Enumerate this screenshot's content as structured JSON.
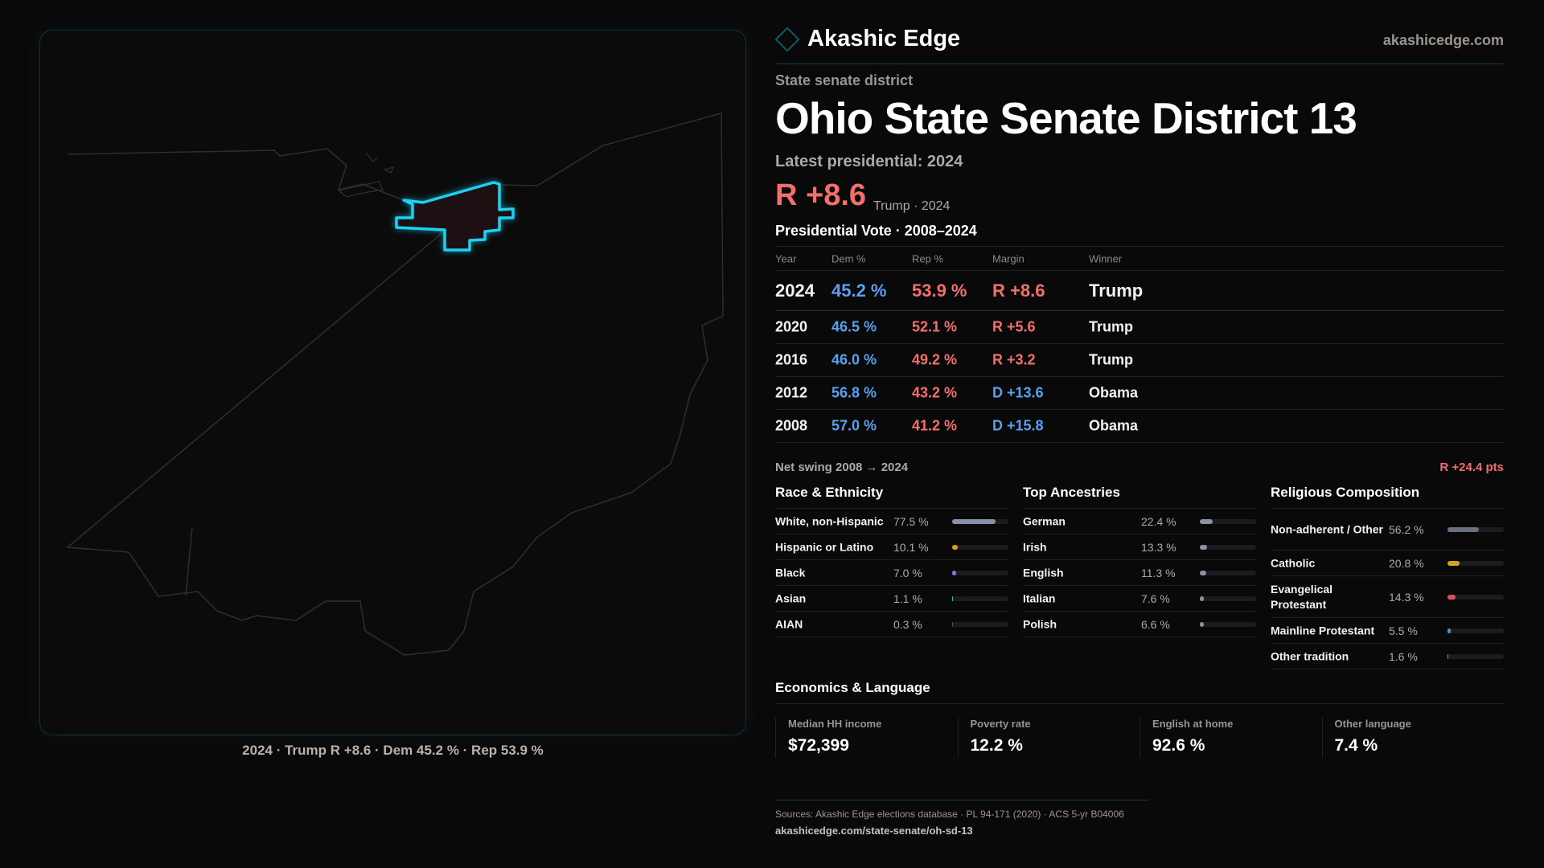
{
  "brand": {
    "name": "Akashic Edge",
    "site": "akashicedge.com"
  },
  "header": {
    "kicker": "State senate district",
    "title": "Ohio State Senate District 13",
    "latest": "Latest presidential: 2024",
    "margin": "R +8.6",
    "margin_sub": "Trump · 2024"
  },
  "map": {
    "caption": "2024 · Trump R +8.6 · Dem 45.2 % · Rep 53.9 %",
    "highlight_color": "#19d3f0"
  },
  "votes": {
    "title": "Presidential Vote · 2008–2024",
    "headers": [
      "Year",
      "Dem %",
      "Rep %",
      "Margin",
      "Winner"
    ],
    "rows": [
      {
        "year": "2024",
        "dem": "45.2 %",
        "rep": "53.9 %",
        "margin": "R +8.6",
        "winner": "Trump",
        "party": "rep"
      },
      {
        "year": "2020",
        "dem": "46.5 %",
        "rep": "52.1 %",
        "margin": "R +5.6",
        "winner": "Trump",
        "party": "rep"
      },
      {
        "year": "2016",
        "dem": "46.0 %",
        "rep": "49.2 %",
        "margin": "R +3.2",
        "winner": "Trump",
        "party": "rep"
      },
      {
        "year": "2012",
        "dem": "56.8 %",
        "rep": "43.2 %",
        "margin": "D +13.6",
        "winner": "Obama",
        "party": "dem"
      },
      {
        "year": "2008",
        "dem": "57.0 %",
        "rep": "41.2 %",
        "margin": "D +15.8",
        "winner": "Obama",
        "party": "dem"
      }
    ],
    "swing_label": "Net swing 2008 → 2024",
    "swing_value": "R +24.4 pts"
  },
  "demographics": [
    {
      "title": "Race & Ethnicity",
      "items": [
        {
          "label": "White, non-Hispanic",
          "pct": "77.5 %",
          "value": 77.5,
          "color": "#8593a8"
        },
        {
          "label": "Hispanic or Latino",
          "pct": "10.1 %",
          "value": 10.1,
          "color": "#e09a1a"
        },
        {
          "label": "Black",
          "pct": "7.0 %",
          "value": 7.0,
          "color": "#8a72d8"
        },
        {
          "label": "Asian",
          "pct": "1.1 %",
          "value": 1.1,
          "color": "#2fc48a"
        },
        {
          "label": "AIAN",
          "pct": "0.3 %",
          "value": 0.3,
          "color": "#555"
        }
      ]
    },
    {
      "title": "Top Ancestries",
      "items": [
        {
          "label": "German",
          "pct": "22.4 %",
          "value": 22.4,
          "color": "#8a94a4"
        },
        {
          "label": "Irish",
          "pct": "13.3 %",
          "value": 13.3,
          "color": "#8a94a4"
        },
        {
          "label": "English",
          "pct": "11.3 %",
          "value": 11.3,
          "color": "#8a94a4"
        },
        {
          "label": "Italian",
          "pct": "7.6 %",
          "value": 7.6,
          "color": "#8a94a4"
        },
        {
          "label": "Polish",
          "pct": "6.6 %",
          "value": 6.6,
          "color": "#8a94a4"
        }
      ]
    },
    {
      "title": "Religious Composition",
      "items": [
        {
          "label": "Non-adherent / Other",
          "pct": "56.2 %",
          "value": 56.2,
          "color": "#6b7080"
        },
        {
          "label": "Catholic",
          "pct": "20.8 %",
          "value": 20.8,
          "color": "#d8a420"
        },
        {
          "label": "Evangelical Protestant",
          "pct": "14.3 %",
          "value": 14.3,
          "color": "#e0505a"
        },
        {
          "label": "Mainline Protestant",
          "pct": "5.5 %",
          "value": 5.5,
          "color": "#4a8ae0"
        },
        {
          "label": "Other tradition",
          "pct": "1.6 %",
          "value": 1.6,
          "color": "#8a94a4"
        }
      ]
    }
  ],
  "economics": {
    "title": "Economics & Language",
    "stats": [
      {
        "label": "Median HH income",
        "value": "$72,399"
      },
      {
        "label": "Poverty rate",
        "value": "12.2 %"
      },
      {
        "label": "English at home",
        "value": "92.6 %"
      },
      {
        "label": "Other language",
        "value": "7.4 %"
      }
    ]
  },
  "footer": {
    "sources": "Sources: Akashic Edge elections database · PL 94-171 (2020) · ACS 5-yr B04006",
    "url": "akashicedge.com/state-senate/oh-sd-13"
  }
}
